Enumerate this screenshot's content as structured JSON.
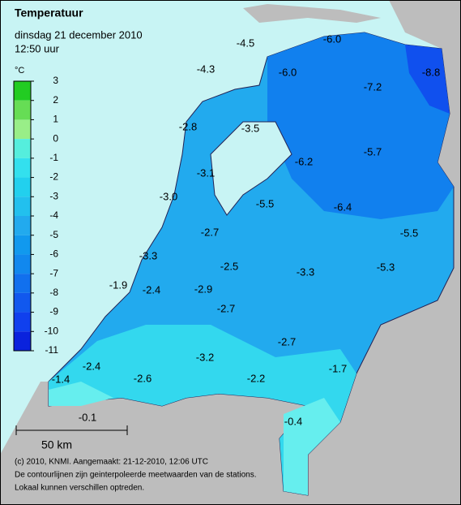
{
  "header": {
    "title": "Temperatuur",
    "date": "dinsdag 21 december 2010",
    "time": "12:50 uur"
  },
  "legend": {
    "unit": "°C",
    "labels": [
      "3",
      "2",
      "1",
      "0",
      "-1",
      "-2",
      "-3",
      "-4",
      "-5",
      "-6",
      "-7",
      "-8",
      "-9",
      "-10",
      "-11"
    ],
    "colors": [
      "#22cc22",
      "#66dd55",
      "#99ee88",
      "#55eedd",
      "#33e0ee",
      "#22d0ee",
      "#22c0ee",
      "#22aaee",
      "#1199ee",
      "#1188ee",
      "#1170ee",
      "#1158ee",
      "#1040ee",
      "#0a22dd"
    ]
  },
  "stations": [
    "-4.5",
    "-6.0",
    "-8.8",
    "-4.3",
    "-6.0",
    "-7.2",
    "-2.8",
    "-3.5",
    "-6.2",
    "-5.7",
    "-3.1",
    "-3.0",
    "-5.5",
    "-6.4",
    "-5.5",
    "-2.7",
    "-3.3",
    "-2.5",
    "-3.3",
    "-5.3",
    "-1.9",
    "-2.4",
    "-2.9",
    "-2.7",
    "-2.7",
    "-2.4",
    "-3.2",
    "-1.7",
    "-1.4",
    "-2.6",
    "-2.2",
    "-0.1",
    "-0.4"
  ],
  "scale": "50 km",
  "footer": [
    "(c) 2010, KNMI. Aangemaakt: 21-12-2010, 12:06 UTC",
    "De contourlijnen zijn geinterpoleerde meetwaarden van de stations.",
    "Lokaal kunnen verschillen optreden."
  ]
}
